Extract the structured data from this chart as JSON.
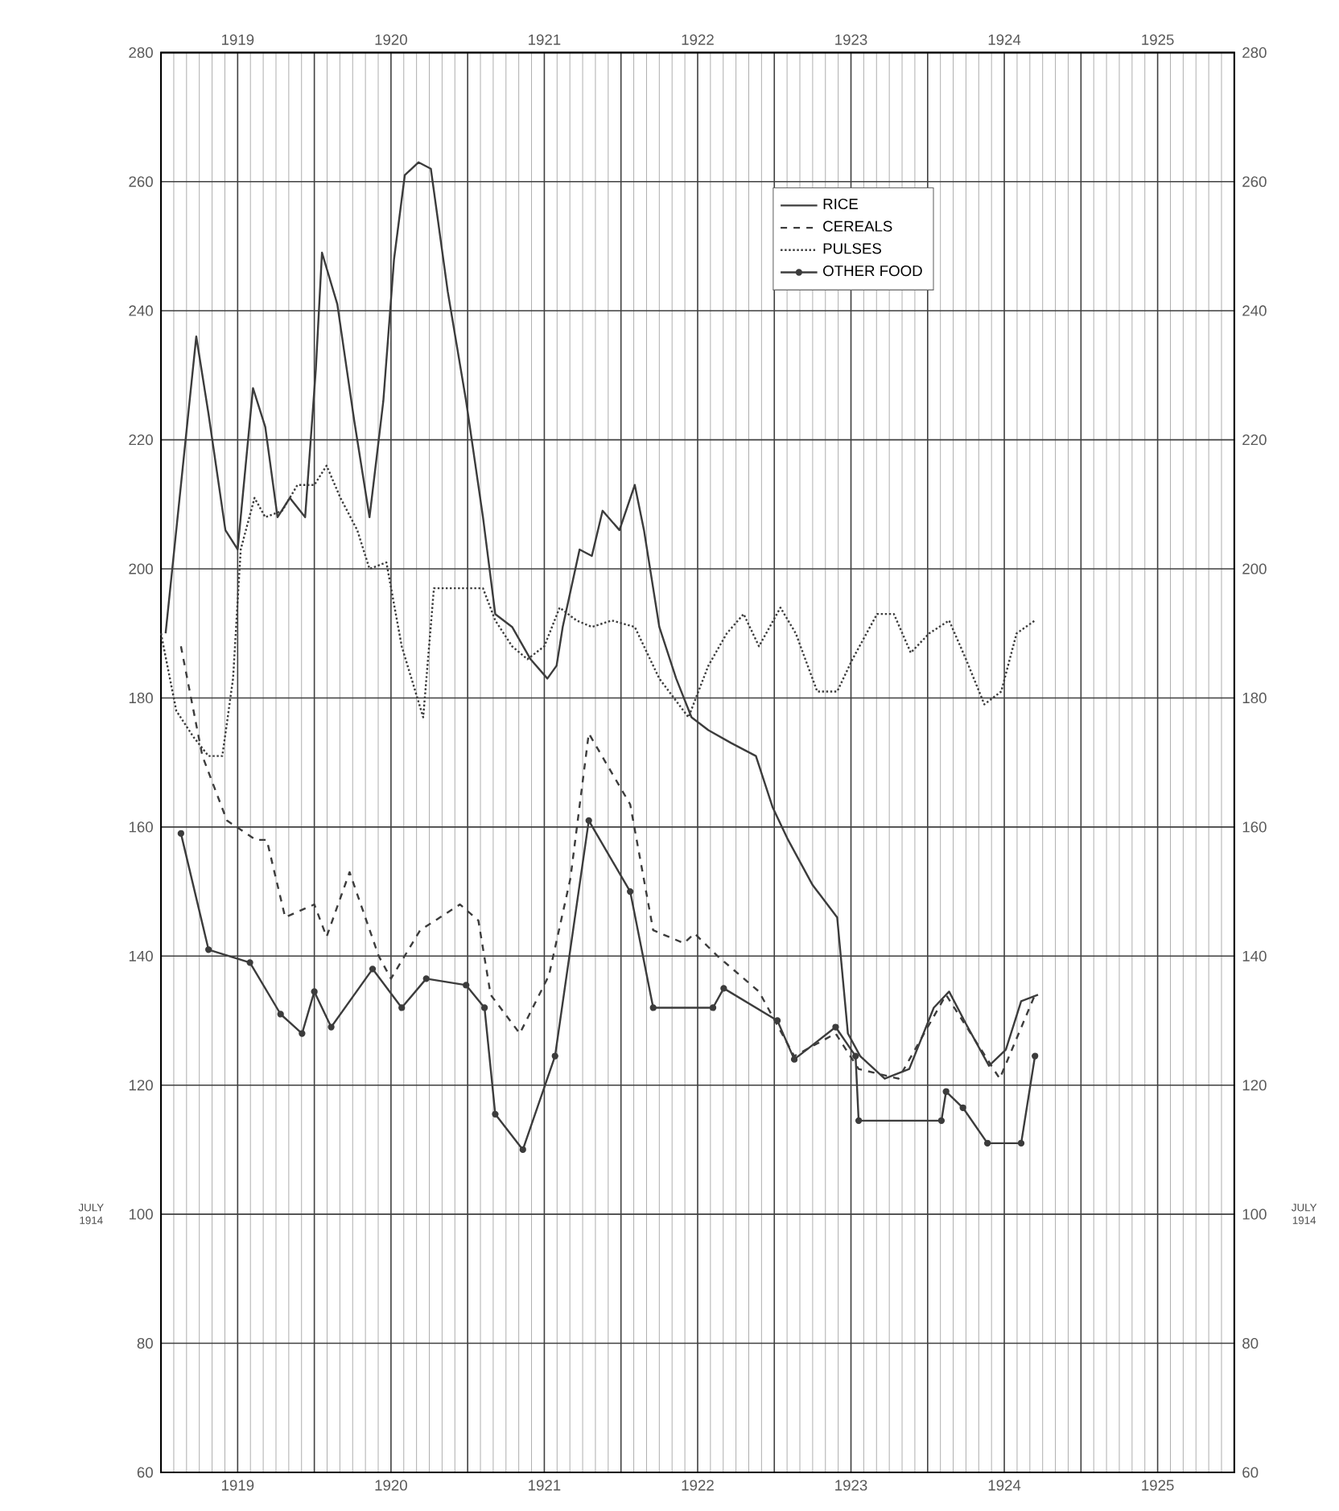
{
  "chart_data": {
    "type": "line",
    "series": [
      {
        "name": "RICE",
        "color": "#3c3c3c",
        "line_style": "solid",
        "x": [
          1919.03,
          1919.13,
          1919.23,
          1919.31,
          1919.42,
          1919.5,
          1919.6,
          1919.68,
          1919.76,
          1919.84,
          1919.94,
          1920.01,
          1920.05,
          1920.15,
          1920.26,
          1920.36,
          1920.45,
          1920.52,
          1920.59,
          1920.68,
          1920.76,
          1920.87,
          1920.99,
          1921.1,
          1921.18,
          1921.29,
          1921.41,
          1921.52,
          1921.58,
          1921.62,
          1921.73,
          1921.81,
          1921.88,
          1921.99,
          1922.09,
          1922.15,
          1922.25,
          1922.36,
          1922.46,
          1922.57,
          1922.72,
          1922.88,
          1922.99,
          1923.09,
          1923.25,
          1923.41,
          1923.48,
          1923.56,
          1923.72,
          1923.88,
          1924.04,
          1924.14,
          1924.25,
          1924.4,
          1924.51,
          1924.61,
          1924.72
        ],
        "values": [
          190,
          213,
          236,
          224,
          206,
          203,
          228,
          222,
          208,
          211,
          208,
          231,
          249,
          241,
          223,
          208,
          226,
          248,
          261,
          263,
          262,
          243,
          226,
          208,
          193,
          191,
          186,
          183,
          185,
          191,
          203,
          202,
          209,
          206,
          213,
          206,
          191,
          183,
          177,
          175,
          173,
          171,
          163,
          158,
          151,
          146,
          128,
          124.5,
          121,
          122.5,
          132,
          134.5,
          129.5,
          123,
          125.5,
          133,
          134
        ]
      },
      {
        "name": "CEREALS",
        "color": "#3c3c3c",
        "line_style": "dashed",
        "x": [
          1919.13,
          1919.27,
          1919.43,
          1919.62,
          1919.69,
          1919.81,
          1920.0,
          1920.08,
          1920.23,
          1920.42,
          1920.5,
          1920.69,
          1920.95,
          1921.07,
          1921.15,
          1921.34,
          1921.53,
          1921.67,
          1921.79,
          1922.06,
          1922.21,
          1922.41,
          1922.48,
          1922.63,
          1922.9,
          1923.13,
          1923.4,
          1923.55,
          1923.81,
          1924.12,
          1924.47,
          1924.7
        ],
        "values": [
          188,
          171,
          161,
          158,
          158,
          146,
          148,
          143,
          153,
          140,
          136.5,
          144,
          148,
          145.5,
          134,
          128,
          137,
          152,
          174.5,
          163.5,
          144,
          142,
          143.5,
          140,
          134.5,
          124.5,
          128,
          122.5,
          121,
          134,
          121,
          134
        ]
      },
      {
        "name": "PULSES",
        "color": "#3c3c3c",
        "line_style": "dotted",
        "x": [
          1919.0,
          1919.1,
          1919.21,
          1919.31,
          1919.4,
          1919.47,
          1919.52,
          1919.61,
          1919.68,
          1919.79,
          1919.89,
          1920.0,
          1920.08,
          1920.17,
          1920.28,
          1920.36,
          1920.47,
          1920.57,
          1920.71,
          1920.78,
          1921.1,
          1921.18,
          1921.29,
          1921.39,
          1921.5,
          1921.6,
          1921.71,
          1921.81,
          1921.94,
          1922.09,
          1922.25,
          1922.44,
          1922.57,
          1922.69,
          1922.8,
          1922.9,
          1923.04,
          1923.14,
          1923.28,
          1923.41,
          1923.51,
          1923.67,
          1923.78,
          1923.89,
          1924.01,
          1924.14,
          1924.25,
          1924.37,
          1924.48,
          1924.58,
          1924.7
        ],
        "values": [
          190,
          178,
          174,
          171,
          171,
          183,
          203,
          211,
          208,
          209,
          213,
          213,
          216,
          211,
          206,
          200,
          201,
          188,
          177,
          197,
          197,
          192,
          188,
          186,
          188,
          194,
          192,
          191,
          192,
          191,
          183,
          177,
          185,
          190,
          193,
          188,
          194,
          190,
          181,
          181,
          186,
          193,
          193,
          187,
          190,
          192,
          186,
          179,
          181,
          190,
          192
        ]
      },
      {
        "name": "OTHER FOOD",
        "color": "#3c3c3c",
        "line_style": "solid",
        "marker": "circle",
        "x": [
          1919.13,
          1919.31,
          1919.58,
          1919.78,
          1919.92,
          1920.0,
          1920.11,
          1920.38,
          1920.57,
          1920.73,
          1920.99,
          1921.11,
          1921.18,
          1921.36,
          1921.57,
          1921.79,
          1922.06,
          1922.21,
          1922.6,
          1922.67,
          1923.02,
          1923.13,
          1923.4,
          1923.53,
          1923.55,
          1924.09,
          1924.12,
          1924.23,
          1924.39,
          1924.61,
          1924.7
        ],
        "values": [
          159,
          141,
          139,
          131,
          128,
          134.5,
          129,
          138,
          132,
          136.5,
          135.5,
          132,
          115.5,
          110,
          124.5,
          161,
          150,
          132,
          132,
          135,
          130,
          124,
          129,
          124.5,
          114.5,
          114.5,
          119,
          116.5,
          111,
          111,
          124.5
        ]
      }
    ],
    "xlim": [
      1919,
      1926
    ],
    "xticks": [
      {
        "value": 1919,
        "label": null
      },
      {
        "value": 1919.5,
        "label": "1919"
      },
      {
        "value": 1920,
        "label": null
      },
      {
        "value": 1920.5,
        "label": "1920"
      },
      {
        "value": 1921,
        "label": null
      },
      {
        "value": 1921.5,
        "label": "1921"
      },
      {
        "value": 1922,
        "label": null
      },
      {
        "value": 1922.5,
        "label": "1922"
      },
      {
        "value": 1923,
        "label": null
      },
      {
        "value": 1923.5,
        "label": "1923"
      },
      {
        "value": 1924,
        "label": null
      },
      {
        "value": 1924.5,
        "label": "1924"
      },
      {
        "value": 1925,
        "label": null
      },
      {
        "value": 1925.5,
        "label": "1925"
      },
      {
        "value": 1926,
        "label": null
      }
    ],
    "x2lim": [
      1919,
      1926
    ],
    "x2ticks": [
      {
        "value": 1919,
        "label": null
      },
      {
        "value": 1919.5,
        "label": "1919"
      },
      {
        "value": 1920,
        "label": null
      },
      {
        "value": 1920.5,
        "label": "1920"
      },
      {
        "value": 1921,
        "label": null
      },
      {
        "value": 1921.5,
        "label": "1921"
      },
      {
        "value": 1922,
        "label": null
      },
      {
        "value": 1922.5,
        "label": "1922"
      },
      {
        "value": 1923,
        "label": null
      },
      {
        "value": 1923.5,
        "label": "1923"
      },
      {
        "value": 1924,
        "label": null
      },
      {
        "value": 1924.5,
        "label": "1924"
      },
      {
        "value": 1925,
        "label": null
      },
      {
        "value": 1925.5,
        "label": "1925"
      },
      {
        "value": 1926,
        "label": null
      }
    ],
    "ylim": [
      60,
      280
    ],
    "yticks": [
      60,
      80,
      100,
      120,
      140,
      160,
      180,
      200,
      220,
      240,
      260,
      280
    ],
    "y2lim": [
      60,
      280
    ],
    "y2ticks": [
      60,
      80,
      100,
      120,
      140,
      160,
      180,
      200,
      220,
      240,
      260,
      280
    ],
    "annotations": [
      "JULY 1914",
      "JULY 1914"
    ],
    "grid": true,
    "legend": "top right"
  }
}
